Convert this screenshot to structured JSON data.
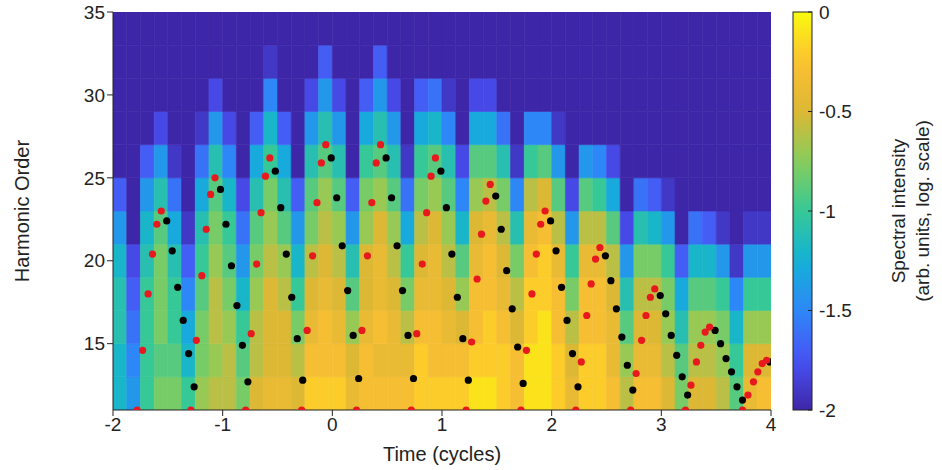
{
  "chart_data": {
    "type": "heatmap",
    "x_label": "Time (cycles)",
    "y_label": "Harmonic Order",
    "xlim": [
      -2,
      4
    ],
    "xticks": [
      -2,
      -1,
      0,
      1,
      2,
      3,
      4
    ],
    "ylim": [
      11,
      35
    ],
    "yticks": [
      15,
      20,
      25,
      30,
      35
    ],
    "grid": false,
    "heatmap": {
      "x_edges": [
        -2,
        -1.875,
        -1.75,
        -1.625,
        -1.5,
        -1.375,
        -1.25,
        -1.125,
        -1,
        -0.875,
        -0.75,
        -0.625,
        -0.5,
        -0.375,
        -0.25,
        -0.125,
        0,
        0.125,
        0.25,
        0.375,
        0.5,
        0.625,
        0.75,
        0.875,
        1,
        1.125,
        1.25,
        1.375,
        1.5,
        1.625,
        1.75,
        1.875,
        2,
        2.125,
        2.25,
        2.375,
        2.5,
        2.625,
        2.75,
        2.875,
        3,
        3.125,
        3.25,
        3.375,
        3.5,
        3.625,
        3.75,
        3.875,
        4
      ],
      "y_edges": [
        11,
        13,
        15,
        17,
        19,
        21,
        23,
        25,
        27,
        29,
        31,
        33,
        35
      ],
      "cells": [
        [
          -1.2,
          -1.2,
          -1.1,
          -1.1,
          -1.2,
          -1.4,
          -1.7,
          -2,
          -2,
          -2,
          -2,
          -2
        ],
        [
          -1.4,
          -1.5,
          -1.6,
          -1.7,
          -1.8,
          -2,
          -2,
          -2,
          -2,
          -2,
          -2,
          -2
        ],
        [
          -1,
          -1,
          -1,
          -1,
          -1.1,
          -1.2,
          -1.4,
          -1.7,
          -2,
          -2,
          -2,
          -2
        ],
        [
          -0.8,
          -0.9,
          -0.8,
          -0.8,
          -0.8,
          -0.9,
          -1.1,
          -1.4,
          -1.8,
          -2,
          -2,
          -2
        ],
        [
          -0.8,
          -0.9,
          -1,
          -1,
          -1.1,
          -1.3,
          -1.6,
          -1.9,
          -2,
          -2,
          -2,
          -2
        ],
        [
          -1,
          -1.2,
          -1.3,
          -1.5,
          -1.7,
          -1.9,
          -2,
          -2,
          -2,
          -2,
          -2,
          -2
        ],
        [
          -0.7,
          -0.8,
          -0.8,
          -0.9,
          -1,
          -1.1,
          -1.3,
          -1.6,
          -1.9,
          -2,
          -2,
          -2
        ],
        [
          -0.6,
          -0.7,
          -0.6,
          -0.6,
          -0.7,
          -0.8,
          -0.9,
          -1.1,
          -1.4,
          -1.8,
          -2,
          -2
        ],
        [
          -0.6,
          -0.6,
          -0.7,
          -0.8,
          -0.9,
          -1,
          -1.2,
          -1.5,
          -1.8,
          -2,
          -2,
          -2
        ],
        [
          -0.8,
          -0.9,
          -1,
          -1.2,
          -1.4,
          -1.6,
          -1.8,
          -2,
          -2,
          -2,
          -2,
          -2
        ],
        [
          -0.5,
          -0.6,
          -0.6,
          -0.7,
          -0.8,
          -0.9,
          -1.1,
          -1.3,
          -1.7,
          -2,
          -2,
          -2
        ],
        [
          -0.4,
          -0.5,
          -0.5,
          -0.5,
          -0.6,
          -0.7,
          -0.8,
          -1,
          -1.2,
          -1.5,
          -1.9,
          -2
        ],
        [
          -0.4,
          -0.5,
          -0.5,
          -0.6,
          -0.7,
          -0.9,
          -1.1,
          -1.3,
          -1.7,
          -2,
          -2,
          -2
        ],
        [
          -0.5,
          -0.6,
          -0.8,
          -1,
          -1.2,
          -1.4,
          -1.7,
          -2,
          -2,
          -2,
          -2,
          -2
        ],
        [
          -0.2,
          -0.3,
          -0.4,
          -0.5,
          -0.6,
          -0.8,
          -0.9,
          -1.1,
          -1.4,
          -1.8,
          -2,
          -2
        ],
        [
          -0.2,
          -0.3,
          -0.3,
          -0.4,
          -0.5,
          -0.6,
          -0.7,
          -0.9,
          -1.1,
          -1.4,
          -1.7,
          -2
        ],
        [
          -0.2,
          -0.3,
          -0.4,
          -0.5,
          -0.6,
          -0.7,
          -0.9,
          -1.1,
          -1.4,
          -1.8,
          -2,
          -2
        ],
        [
          -0.4,
          -0.5,
          -0.7,
          -0.9,
          -1.1,
          -1.4,
          -1.7,
          -2,
          -2,
          -2,
          -2,
          -2
        ],
        [
          -0.3,
          -0.3,
          -0.4,
          -0.5,
          -0.5,
          -0.7,
          -0.8,
          -1,
          -1.3,
          -1.7,
          -2,
          -2
        ],
        [
          -0.3,
          -0.4,
          -0.3,
          -0.4,
          -0.4,
          -0.5,
          -0.7,
          -0.9,
          -1.1,
          -1.4,
          -1.7,
          -2
        ],
        [
          -0.3,
          -0.4,
          -0.4,
          -0.5,
          -0.6,
          -0.7,
          -0.9,
          -1.1,
          -1.4,
          -1.8,
          -2,
          -2
        ],
        [
          -0.3,
          -0.4,
          -0.6,
          -0.8,
          -1,
          -1.3,
          -1.6,
          -1.9,
          -2,
          -2,
          -2,
          -2
        ],
        [
          -0.2,
          -0.2,
          -0.3,
          -0.4,
          -0.5,
          -0.6,
          -0.8,
          -1,
          -1.3,
          -1.7,
          -2,
          -2
        ],
        [
          -0.2,
          -0.3,
          -0.3,
          -0.4,
          -0.4,
          -0.5,
          -0.7,
          -0.9,
          -1.2,
          -1.6,
          -2,
          -2
        ],
        [
          -0.2,
          -0.3,
          -0.4,
          -0.5,
          -0.6,
          -0.7,
          -0.9,
          -1.1,
          -1.5,
          -1.9,
          -2,
          -2
        ],
        [
          -0.2,
          -0.3,
          -0.5,
          -0.7,
          -0.9,
          -1.2,
          -1.5,
          -1.8,
          -2,
          -2,
          -2,
          -2
        ],
        [
          -0.1,
          -0.2,
          -0.3,
          -0.3,
          -0.4,
          -0.5,
          -0.7,
          -0.9,
          -1.3,
          -1.8,
          -2,
          -2
        ],
        [
          -0.1,
          -0.2,
          -0.2,
          -0.3,
          -0.3,
          -0.4,
          -0.6,
          -0.9,
          -1.3,
          -1.8,
          -2,
          -2
        ],
        [
          -0.2,
          -0.2,
          -0.3,
          -0.4,
          -0.5,
          -0.6,
          -0.8,
          -1.1,
          -1.6,
          -2,
          -2,
          -2
        ],
        [
          -0.3,
          -0.3,
          -0.5,
          -0.6,
          -0.8,
          -1.1,
          -1.5,
          -1.9,
          -2,
          -2,
          -2,
          -2
        ],
        [
          -0.1,
          -0.1,
          -0.2,
          -0.2,
          -0.3,
          -0.4,
          -0.6,
          -1,
          -1.5,
          -2,
          -2,
          -2
        ],
        [
          -0.1,
          -0.1,
          -0.1,
          -0.2,
          -0.2,
          -0.3,
          -0.5,
          -0.9,
          -1.5,
          -2,
          -2,
          -2
        ],
        [
          -0.2,
          -0.2,
          -0.3,
          -0.3,
          -0.4,
          -0.6,
          -0.9,
          -1.4,
          -1.9,
          -2,
          -2,
          -2
        ],
        [
          -0.4,
          -0.5,
          -0.6,
          -0.8,
          -1,
          -1.4,
          -1.8,
          -2,
          -2,
          -2,
          -2,
          -2
        ],
        [
          -0.2,
          -0.2,
          -0.3,
          -0.3,
          -0.4,
          -0.6,
          -0.9,
          -1.4,
          -2,
          -2,
          -2,
          -2
        ],
        [
          -0.2,
          -0.2,
          -0.3,
          -0.3,
          -0.4,
          -0.6,
          -1,
          -1.5,
          -2,
          -2,
          -2,
          -2
        ],
        [
          -0.3,
          -0.4,
          -0.4,
          -0.5,
          -0.6,
          -0.9,
          -1.3,
          -1.8,
          -2,
          -2,
          -2,
          -2
        ],
        [
          -0.6,
          -0.7,
          -0.9,
          -1.1,
          -1.4,
          -1.8,
          -2,
          -2,
          -2,
          -2,
          -2,
          -2
        ],
        [
          -0.3,
          -0.4,
          -0.5,
          -0.6,
          -0.8,
          -1.1,
          -1.6,
          -2,
          -2,
          -2,
          -2,
          -2
        ],
        [
          -0.3,
          -0.4,
          -0.5,
          -0.6,
          -0.8,
          -1.2,
          -1.7,
          -2,
          -2,
          -2,
          -2,
          -2
        ],
        [
          -0.5,
          -0.6,
          -0.7,
          -0.8,
          -1,
          -1.4,
          -1.9,
          -2,
          -2,
          -2,
          -2,
          -2
        ],
        [
          -0.8,
          -0.9,
          -1.1,
          -1.3,
          -1.7,
          -2,
          -2,
          -2,
          -2,
          -2,
          -2,
          -2
        ],
        [
          -0.5,
          -0.6,
          -0.7,
          -0.9,
          -1.2,
          -1.6,
          -2,
          -2,
          -2,
          -2,
          -2,
          -2
        ],
        [
          -0.5,
          -0.6,
          -0.7,
          -0.9,
          -1.2,
          -1.7,
          -2,
          -2,
          -2,
          -2,
          -2,
          -2
        ],
        [
          -0.6,
          -0.7,
          -0.8,
          -1,
          -1.4,
          -1.9,
          -2,
          -2,
          -2,
          -2,
          -2,
          -2
        ],
        [
          -0.9,
          -1,
          -1.2,
          -1.5,
          -1.9,
          -2,
          -2,
          -2,
          -2,
          -2,
          -2,
          -2
        ],
        [
          -0.4,
          -0.5,
          -0.7,
          -1,
          -1.4,
          -1.9,
          -2,
          -2,
          -2,
          -2,
          -2,
          -2
        ],
        [
          -0.3,
          -0.5,
          -0.7,
          -1,
          -1.4,
          -1.9,
          -2,
          -2,
          -2,
          -2,
          -2,
          -2
        ]
      ]
    },
    "colorbar": {
      "label": [
        "Spectral intensity",
        "(arb. units, log. scale)"
      ],
      "range": [
        -2,
        0
      ],
      "ticks": [
        0,
        -0.5,
        -1,
        -1.5,
        -2
      ]
    },
    "series": [
      {
        "type": "scatter",
        "color": "#000000",
        "marker": "circle",
        "x": [
          -1.51,
          -1.46,
          -1.41,
          -1.36,
          -1.31,
          -1.26,
          -1.02,
          -0.97,
          -0.92,
          -0.87,
          -0.82,
          -0.77,
          -0.52,
          -0.47,
          -0.42,
          -0.37,
          -0.32,
          -0.27,
          -0.01,
          0.04,
          0.09,
          0.14,
          0.19,
          0.24,
          0.49,
          0.54,
          0.59,
          0.64,
          0.69,
          0.74,
          0.99,
          1.04,
          1.09,
          1.14,
          1.19,
          1.24,
          1.49,
          1.54,
          1.59,
          1.64,
          1.69,
          1.74,
          1.99,
          2.04,
          2.09,
          2.14,
          2.19,
          2.24,
          2.49,
          2.54,
          2.59,
          2.64,
          2.69,
          2.74,
          2.99,
          3.04,
          3.09,
          3.14,
          3.19,
          3.24,
          3.49,
          3.54,
          3.59,
          3.64,
          3.69,
          3.74,
          3.99
        ],
        "y": [
          22.4,
          20.6,
          18.4,
          16.4,
          14.4,
          12.4,
          24.3,
          22.2,
          19.7,
          17.3,
          14.9,
          12.7,
          25.4,
          23.2,
          20.4,
          17.8,
          15.3,
          12.8,
          26.2,
          23.8,
          20.9,
          18.2,
          15.5,
          12.9,
          26.2,
          23.8,
          20.9,
          18.2,
          15.5,
          12.9,
          25.4,
          23.2,
          20.4,
          17.8,
          15.3,
          12.8,
          23.9,
          21.9,
          19.4,
          17.1,
          14.8,
          12.6,
          22.4,
          20.6,
          18.4,
          16.4,
          14.4,
          12.4,
          20.3,
          18.8,
          17.1,
          15.4,
          13.7,
          12.2,
          17.9,
          16.8,
          15.5,
          14.3,
          13,
          11.9,
          15.8,
          15,
          14.1,
          13.3,
          12.4,
          11.6,
          13.9
        ]
      },
      {
        "type": "scatter",
        "color": "#e8191e",
        "marker": "circle",
        "x": [
          -1.78,
          -1.73,
          -1.68,
          -1.64,
          -1.6,
          -1.56,
          -1.29,
          -1.24,
          -1.19,
          -1.15,
          -1.11,
          -1.07,
          -0.79,
          -0.74,
          -0.69,
          -0.65,
          -0.61,
          -0.57,
          -0.28,
          -0.23,
          -0.18,
          -0.14,
          -0.1,
          -0.06,
          0.22,
          0.27,
          0.32,
          0.36,
          0.4,
          0.44,
          0.72,
          0.77,
          0.82,
          0.86,
          0.9,
          0.94,
          1.22,
          1.27,
          1.32,
          1.36,
          1.4,
          1.44,
          1.72,
          1.77,
          1.82,
          1.86,
          1.9,
          1.94,
          2.22,
          2.27,
          2.32,
          2.36,
          2.4,
          2.44,
          2.72,
          2.77,
          2.82,
          2.86,
          2.9,
          2.94,
          3.22,
          3.27,
          3.32,
          3.36,
          3.4,
          3.44,
          3.74,
          3.79,
          3.84,
          3.88,
          3.92,
          3.96
        ],
        "y": [
          11,
          14.6,
          18,
          20.4,
          22.2,
          23,
          11,
          15.2,
          19.1,
          21.9,
          24,
          25,
          11,
          15.6,
          19.8,
          22.9,
          25.1,
          26.2,
          11,
          15.8,
          20.3,
          23.5,
          25.9,
          27,
          11,
          15.8,
          20.3,
          23.5,
          25.9,
          27,
          11,
          15.6,
          19.8,
          22.9,
          25.1,
          26.2,
          11,
          15.1,
          18.9,
          21.6,
          23.6,
          24.6,
          11,
          14.6,
          18,
          20.4,
          22.2,
          23,
          11,
          13.9,
          16.7,
          18.6,
          20.1,
          20.8,
          11,
          13.2,
          15.2,
          16.7,
          17.8,
          18.3,
          11,
          12.5,
          13.9,
          14.9,
          15.7,
          16,
          11,
          11.9,
          12.7,
          13.3,
          13.8,
          14
        ]
      }
    ]
  }
}
